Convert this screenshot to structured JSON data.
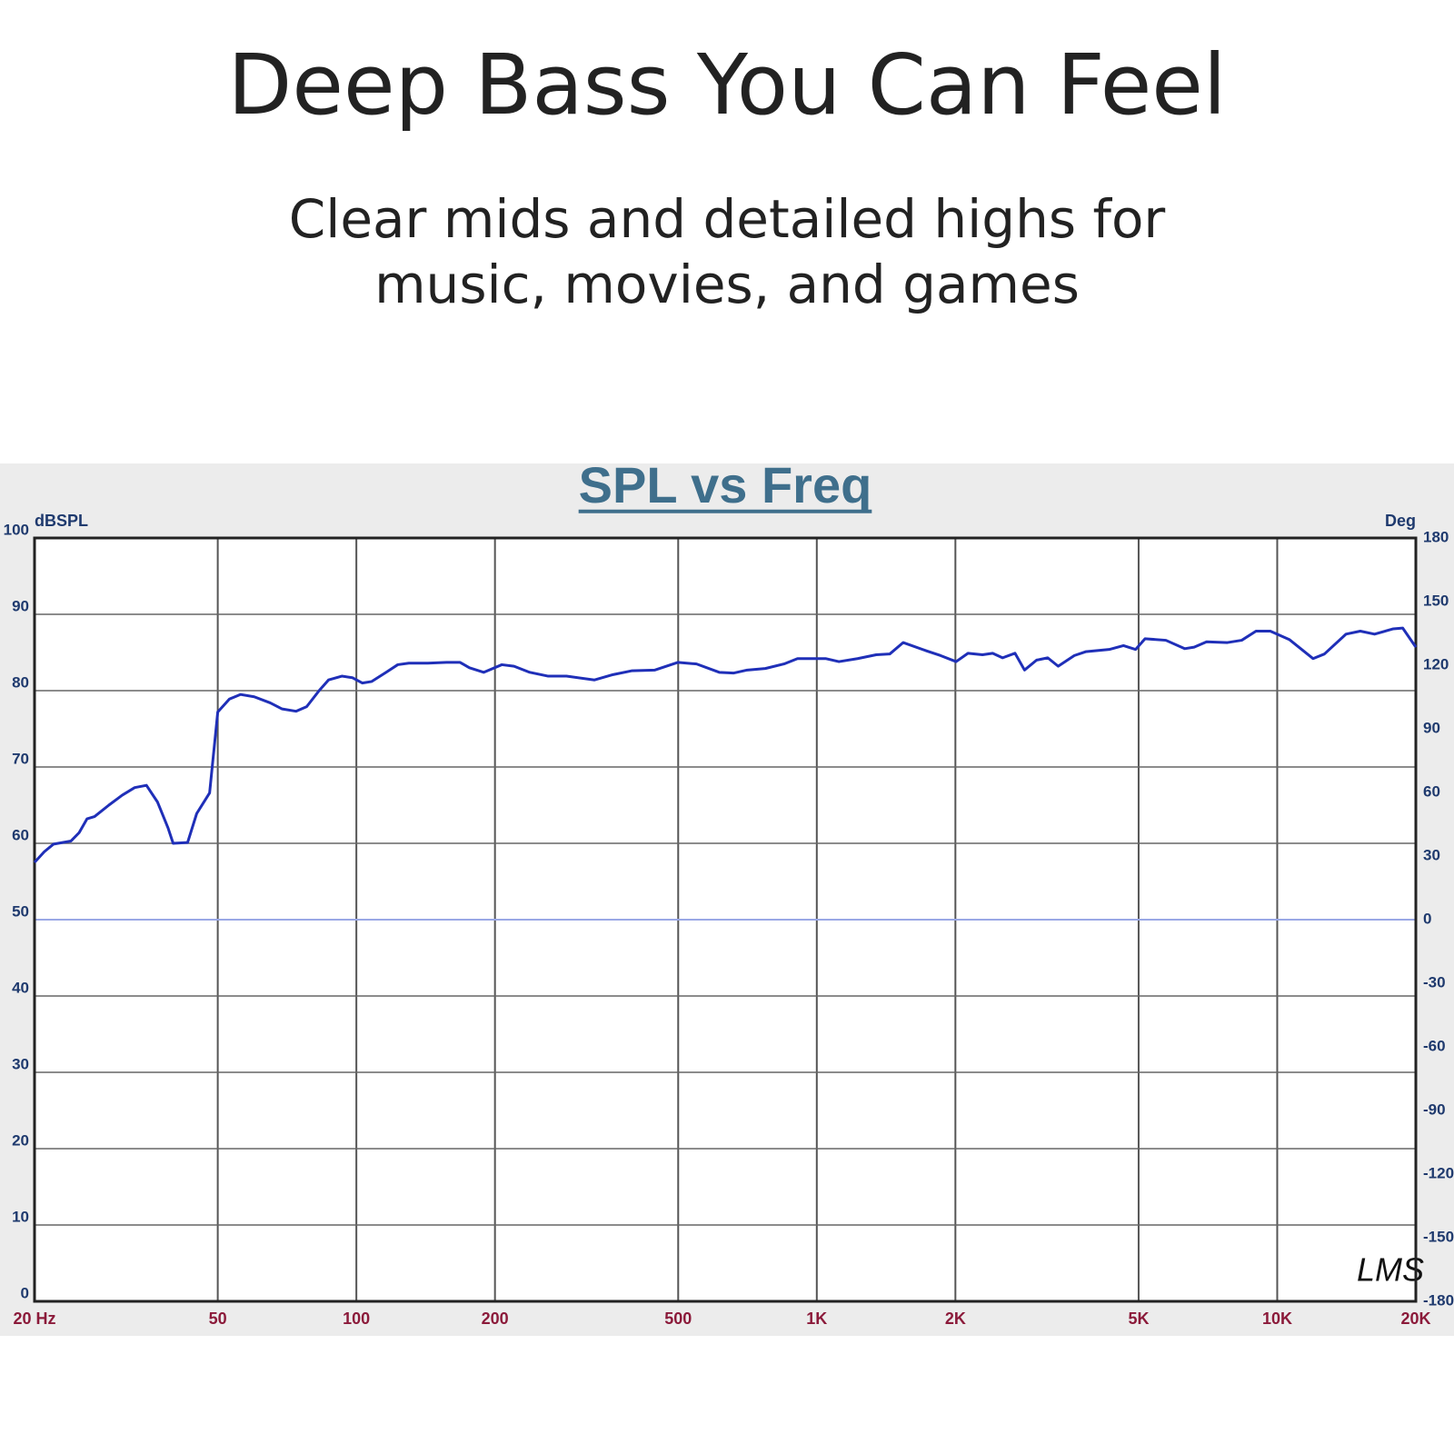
{
  "header": {
    "title": "Deep Bass You Can Feel",
    "subtitle": [
      "Clear mids and detailed highs for",
      "music, movies, and games"
    ]
  },
  "chart_data": {
    "type": "line",
    "title": "SPL vs Freq",
    "y_label": "dBSPL",
    "y2_label": "Deg",
    "logo": "LMS",
    "xscale": "log",
    "grid": true,
    "xlim": [
      20,
      20000
    ],
    "xticks": [
      {
        "value": 20,
        "label": "20 Hz"
      },
      50,
      100,
      200,
      500,
      {
        "value": 1000,
        "label": "1K"
      },
      {
        "value": 2000,
        "label": "2K"
      },
      {
        "value": 5000,
        "label": "5K"
      },
      {
        "value": 10000,
        "label": "10K"
      },
      {
        "value": 20000,
        "label": "20K"
      }
    ],
    "ylim": [
      0,
      100
    ],
    "yticks": [
      0,
      10,
      20,
      30,
      40,
      50,
      60,
      70,
      80,
      90,
      100
    ],
    "y2lim": [
      -180,
      180
    ],
    "y2ticks": [
      -180,
      -150,
      -120,
      -90,
      -60,
      -30,
      0,
      30,
      60,
      90,
      120,
      150,
      180
    ],
    "x": [
      20,
      21,
      22,
      24,
      25,
      26,
      27,
      29,
      31,
      33,
      35,
      37,
      39,
      40,
      43,
      45,
      48,
      50,
      53,
      56,
      60,
      65,
      69,
      74,
      78,
      83,
      87,
      93,
      98,
      103,
      108,
      116,
      123,
      130,
      143,
      157,
      168,
      176,
      189,
      207,
      220,
      238,
      261,
      286,
      329,
      361,
      396,
      445,
      499,
      548,
      614,
      659,
      706,
      773,
      849,
      908,
      1045,
      1117,
      1226,
      1346,
      1440,
      1540,
      1733,
      1856,
      2007,
      2130,
      2290,
      2410,
      2532,
      2695,
      2826,
      3002,
      3174,
      3344,
      3625,
      3836,
      4317,
      4635,
      4926,
      5163,
      5729,
      6294,
      6601,
      7024,
      7795,
      8372,
      8993,
      9659,
      10620,
      11960,
      12660,
      14100,
      15150,
      16270,
      17870,
      18730,
      20000
    ],
    "series": [
      {
        "name": "SPL",
        "color": "#1f2fb8",
        "values": [
          57.5,
          58.9,
          59.9,
          60.3,
          61.4,
          63.2,
          63.5,
          65,
          66.3,
          67.3,
          67.6,
          65.4,
          62,
          60,
          60.1,
          63.9,
          66.6,
          77.2,
          78.9,
          79.5,
          79.2,
          78.4,
          77.6,
          77.3,
          77.9,
          80,
          81.4,
          81.9,
          81.7,
          81,
          81.2,
          82.4,
          83.4,
          83.6,
          83.6,
          83.7,
          83.7,
          83,
          82.4,
          83.4,
          83.2,
          82.4,
          81.9,
          81.9,
          81.4,
          82.1,
          82.6,
          82.7,
          83.7,
          83.5,
          82.4,
          82.3,
          82.7,
          82.9,
          83.5,
          84.2,
          84.2,
          83.8,
          84.2,
          84.7,
          84.8,
          86.3,
          85.2,
          84.6,
          83.8,
          84.9,
          84.7,
          84.9,
          84.3,
          84.9,
          82.7,
          84,
          84.3,
          83.2,
          84.6,
          85.1,
          85.4,
          85.9,
          85.4,
          86.8,
          86.6,
          85.5,
          85.7,
          86.4,
          86.3,
          86.6,
          87.8,
          87.8,
          86.7,
          84.2,
          84.8,
          87.4,
          87.8,
          87.4,
          88.1,
          88.2,
          85.7
        ]
      }
    ]
  }
}
